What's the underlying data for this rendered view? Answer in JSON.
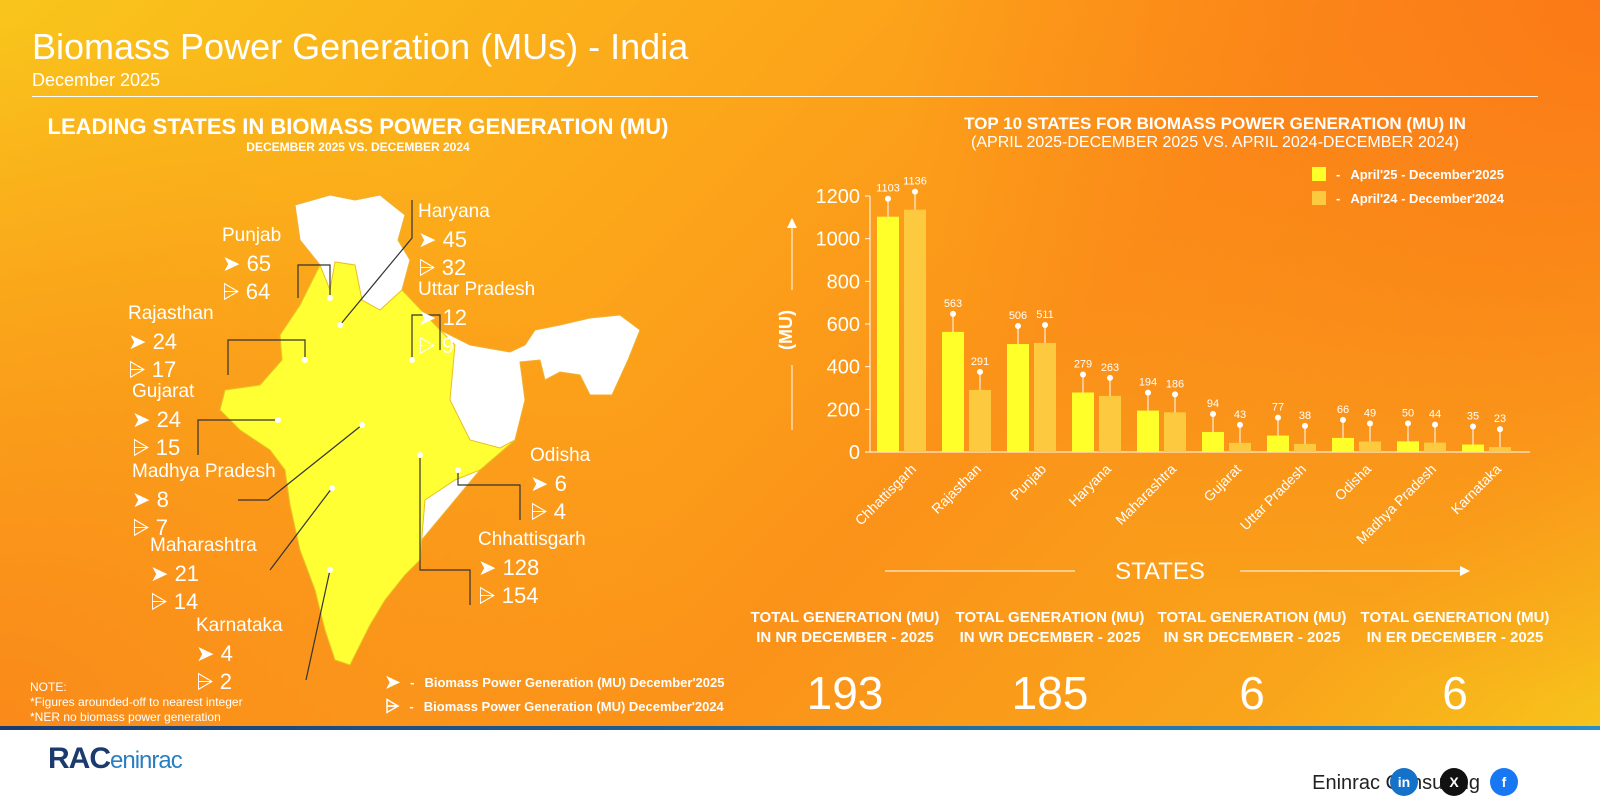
{
  "header": {
    "title": "Biomass Power Generation (MUs) - India",
    "subtitle": "December 2025"
  },
  "left": {
    "title": "LEADING STATES IN BIOMASS POWER GENERATION (MU)",
    "subtitle": "DECEMBER 2025 VS. DECEMBER 2024",
    "states": [
      {
        "name": "Punjab",
        "dec2025": "65",
        "dec2024": "64"
      },
      {
        "name": "Haryana",
        "dec2025": "45",
        "dec2024": "32"
      },
      {
        "name": "Rajasthan",
        "dec2025": "24",
        "dec2024": "17"
      },
      {
        "name": "Uttar Pradesh",
        "dec2025": "12",
        "dec2024": "9"
      },
      {
        "name": "Gujarat",
        "dec2025": "24",
        "dec2024": "15"
      },
      {
        "name": "Madhya Pradesh",
        "dec2025": "8",
        "dec2024": "7"
      },
      {
        "name": "Odisha",
        "dec2025": "6",
        "dec2024": "4"
      },
      {
        "name": "Maharashtra",
        "dec2025": "21",
        "dec2024": "14"
      },
      {
        "name": "Chhattisgarh",
        "dec2025": "128",
        "dec2024": "154"
      },
      {
        "name": "Karnataka",
        "dec2025": "4",
        "dec2024": "2"
      }
    ],
    "legend": [
      "Biomass Power Generation (MU) December'2025",
      "Biomass Power Generation (MU) December'2024"
    ],
    "note": [
      "NOTE:",
      "*Figures arounded-off to nearest integer",
      "*NER no biomass power generation"
    ]
  },
  "chart_data": {
    "type": "bar",
    "title": "TOP 10 STATES FOR BIOMASS POWER GENERATION (MU) IN",
    "subtitle": "(APRIL 2025-DECEMBER 2025 VS. APRIL 2024-DECEMBER 2024)",
    "categories": [
      "Chhattisgarh",
      "Rajasthan",
      "Punjab",
      "Haryana",
      "Maharashtra",
      "Gujarat",
      "Uttar Pradesh",
      "Odisha",
      "Madhya Pradesh",
      "Karnataka"
    ],
    "series": [
      {
        "name": "April'25 - December'2025",
        "color": "#ffff2a",
        "values": [
          1103,
          563,
          506,
          279,
          194,
          94,
          77,
          66,
          50,
          35
        ]
      },
      {
        "name": "April'24 - December'2024",
        "color": "#fdc93f",
        "values": [
          1136,
          291,
          511,
          263,
          186,
          43,
          38,
          49,
          44,
          23
        ]
      }
    ],
    "xlabel": "STATES",
    "ylabel": "(MU)",
    "ylim": [
      0,
      1200
    ],
    "yticks": [
      0,
      200,
      400,
      600,
      800,
      1000,
      1200
    ],
    "legend_position": "top-right",
    "grid": false
  },
  "totals": [
    {
      "label1": "TOTAL  GENERATION (MU)",
      "label2": "IN NR DECEMBER - 2025",
      "value": "193"
    },
    {
      "label1": "TOTAL  GENERATION (MU)",
      "label2": "IN WR DECEMBER - 2025",
      "value": "185"
    },
    {
      "label1": "TOTAL  GENERATION (MU)",
      "label2": "IN SR DECEMBER - 2025",
      "value": "6"
    },
    {
      "label1": "TOTAL  GENERATION (MU)",
      "label2": "IN ER DECEMBER - 2025",
      "value": "6"
    }
  ],
  "footer": {
    "logo": "RACeninrac",
    "company": "Eninrac Consulting",
    "social": [
      {
        "icon": "linkedin-icon",
        "text": "in",
        "color": "#1572c9"
      },
      {
        "icon": "x-icon",
        "text": "X",
        "color": "#111111"
      },
      {
        "icon": "facebook-icon",
        "text": "f",
        "color": "#1877f2"
      }
    ]
  }
}
